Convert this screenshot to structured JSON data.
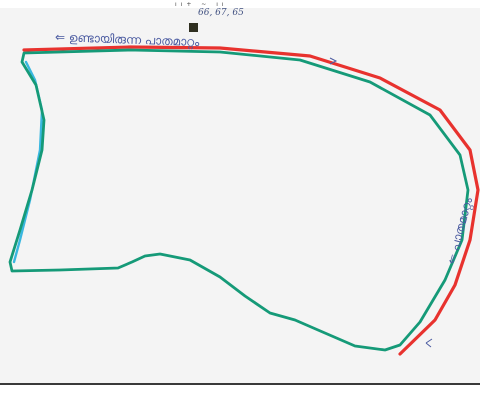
{
  "header": {
    "top_text": "ıı+ ~ ıı",
    "code_text": "66, 67, 65"
  },
  "annotations": {
    "top_script": "⇐ ഉണ്ടായിരുന്ന പാതമാറ്റം",
    "right_script": "⇐ പാതമാറ്റം"
  },
  "colors": {
    "paper": "#f4f4f4",
    "red_line": "#e8322e",
    "teal_line": "#159a78",
    "blue_line": "#39b7e0",
    "ink": "#4a5aa0"
  }
}
